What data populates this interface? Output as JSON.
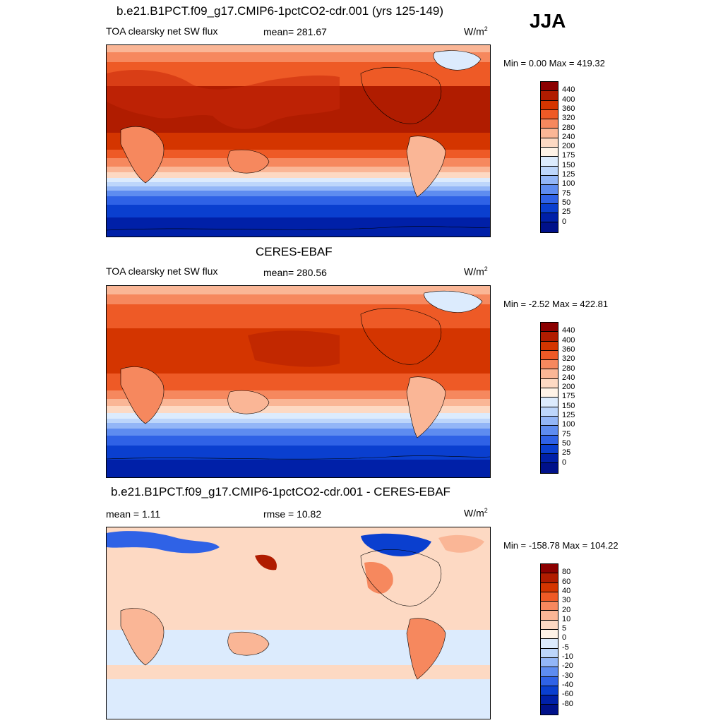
{
  "season": "JJA",
  "panels": [
    {
      "title": "b.e21.B1PCT.f09_g17.CMIP6-1pctCO2-cdr.001 (yrs 125-149)",
      "variable": "TOA clearsky net SW flux",
      "mean_label": "mean= 281.67",
      "units": "W/m",
      "units_sup": "2",
      "minmax": "Min =   0.00 Max = 419.32",
      "colorbar_labels": [
        "440",
        "400",
        "360",
        "320",
        "280",
        "240",
        "200",
        "175",
        "150",
        "125",
        "100",
        "75",
        "50",
        "25",
        "0"
      ],
      "colorbar_colors": [
        "#8b0000",
        "#b01c00",
        "#d43500",
        "#ee5a26",
        "#f6885e",
        "#fab696",
        "#fdd9c3",
        "#fff3e7",
        "#dcebfd",
        "#bdd6fb",
        "#93b6f7",
        "#5e8cf0",
        "#2f62e6",
        "#0a3fcf",
        "#0020a8",
        "#00118a"
      ]
    },
    {
      "title": "CERES-EBAF",
      "variable": "TOA clearsky net SW flux",
      "mean_label": "mean= 280.56",
      "units": "W/m",
      "units_sup": "2",
      "minmax": "Min =  -2.52 Max = 422.81",
      "colorbar_labels": [
        "440",
        "400",
        "360",
        "320",
        "280",
        "240",
        "200",
        "175",
        "150",
        "125",
        "100",
        "75",
        "50",
        "25",
        "0"
      ],
      "colorbar_colors": [
        "#8b0000",
        "#b01c00",
        "#d43500",
        "#ee5a26",
        "#f6885e",
        "#fab696",
        "#fdd9c3",
        "#fff3e7",
        "#dcebfd",
        "#bdd6fb",
        "#93b6f7",
        "#5e8cf0",
        "#2f62e6",
        "#0a3fcf",
        "#0020a8",
        "#00118a"
      ]
    },
    {
      "title": "b.e21.B1PCT.f09_g17.CMIP6-1pctCO2-cdr.001 - CERES-EBAF",
      "variable": "mean =   1.11",
      "mean_label": "rmse =  10.82",
      "units": "W/m",
      "units_sup": "2",
      "minmax": "Min = -158.78 Max = 104.22",
      "colorbar_labels": [
        "80",
        "60",
        "40",
        "30",
        "20",
        "10",
        "5",
        "0",
        "-5",
        "-10",
        "-20",
        "-30",
        "-40",
        "-60",
        "-80"
      ],
      "colorbar_colors": [
        "#8b0000",
        "#b01c00",
        "#d43500",
        "#ee5a26",
        "#f6885e",
        "#fab696",
        "#fdd9c3",
        "#fff3e7",
        "#dcebfd",
        "#bdd6fb",
        "#93b6f7",
        "#5e8cf0",
        "#2f62e6",
        "#0a3fcf",
        "#0020a8",
        "#00118a"
      ]
    }
  ]
}
